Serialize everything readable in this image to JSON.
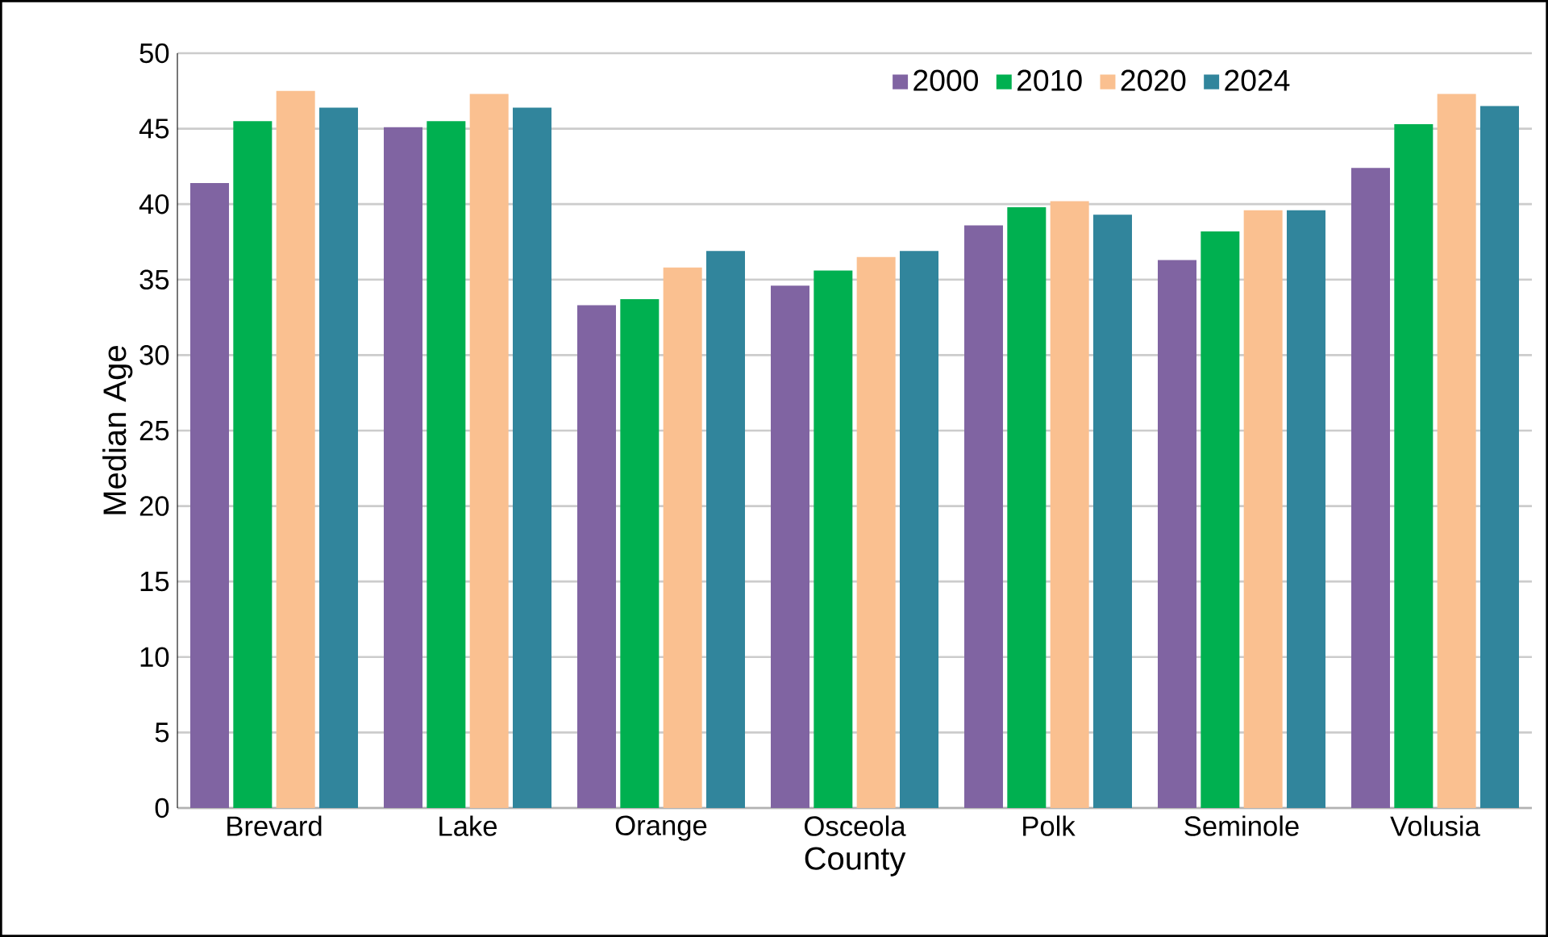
{
  "chart_data": {
    "type": "bar",
    "xlabel": "County",
    "ylabel": "Median Age",
    "categories": [
      "Brevard",
      "Lake",
      "Orange",
      "Osceola",
      "Polk",
      "Seminole",
      "Volusia"
    ],
    "series": [
      {
        "name": "2000",
        "color": "#8064a2",
        "values": [
          41.4,
          45.1,
          33.3,
          34.6,
          38.6,
          36.3,
          42.4
        ]
      },
      {
        "name": "2010",
        "color": "#00b050",
        "values": [
          45.5,
          45.5,
          33.7,
          35.6,
          39.8,
          38.2,
          45.3
        ]
      },
      {
        "name": "2020",
        "color": "#fac090",
        "values": [
          47.5,
          47.3,
          35.8,
          36.5,
          40.2,
          39.6,
          47.3
        ]
      },
      {
        "name": "2024",
        "color": "#31859c",
        "values": [
          46.4,
          46.4,
          36.9,
          36.9,
          39.3,
          39.6,
          46.5
        ]
      }
    ],
    "ylim": [
      0,
      50
    ],
    "yticks": [
      0,
      5,
      10,
      15,
      20,
      25,
      30,
      35,
      40,
      45,
      50
    ],
    "grid": "y",
    "legend": "top right"
  }
}
